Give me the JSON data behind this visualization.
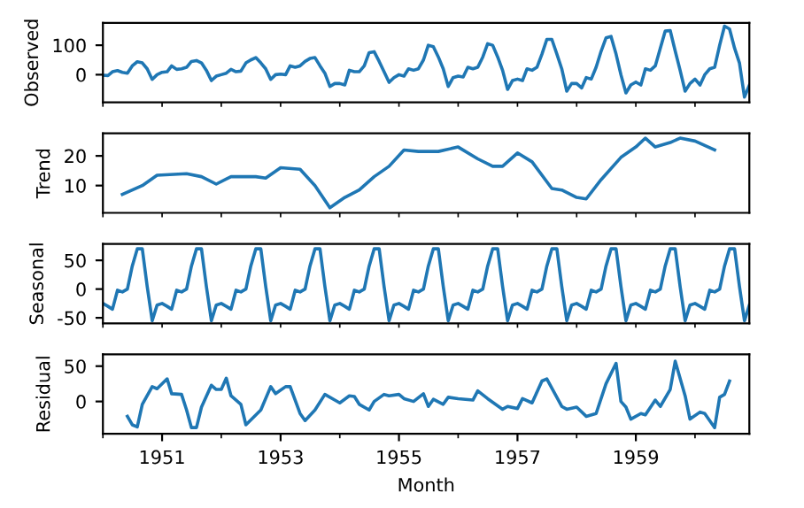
{
  "chart_data": [
    {
      "type": "line",
      "ylabel": "Observed",
      "ylim": [
        -94,
        176
      ],
      "yticks": [
        0,
        100
      ],
      "xlim": [
        "1950-01",
        "1960-12"
      ],
      "xticks": [
        {
          "value": "1950",
          "label": null
        },
        {
          "value": "1951",
          "label": null
        },
        {
          "value": "1952",
          "label": null
        },
        {
          "value": "1953",
          "label": null
        },
        {
          "value": "1954",
          "label": null
        },
        {
          "value": "1955",
          "label": null
        },
        {
          "value": "1956",
          "label": null
        },
        {
          "value": "1957",
          "label": null
        },
        {
          "value": "1958",
          "label": null
        },
        {
          "value": "1959",
          "label": null
        },
        {
          "value": "1960",
          "label": null
        }
      ],
      "tick_labels": "y",
      "grid": false,
      "x": [
        "1950-01",
        "1950-02",
        "1950-03",
        "1950-04",
        "1950-05",
        "1950-06",
        "1950-07",
        "1950-08",
        "1950-09",
        "1950-10",
        "1950-11",
        "1950-12",
        "1951-01",
        "1951-02",
        "1951-03",
        "1951-04",
        "1951-05",
        "1951-06",
        "1951-07",
        "1951-08",
        "1951-09",
        "1951-10",
        "1951-11",
        "1951-12",
        "1952-01",
        "1952-02",
        "1952-03",
        "1952-04",
        "1952-05",
        "1952-06",
        "1952-07",
        "1952-08",
        "1952-09",
        "1952-10",
        "1952-11",
        "1952-12",
        "1953-01",
        "1953-02",
        "1953-03",
        "1953-04",
        "1953-05",
        "1953-06",
        "1953-07",
        "1953-08",
        "1953-09",
        "1953-10",
        "1953-11",
        "1953-12",
        "1954-01",
        "1954-02",
        "1954-03",
        "1954-04",
        "1954-05",
        "1954-06",
        "1954-07",
        "1954-08",
        "1954-09",
        "1954-10",
        "1954-11",
        "1954-12",
        "1955-01",
        "1955-02",
        "1955-03",
        "1955-04",
        "1955-05",
        "1955-06",
        "1955-07",
        "1955-08",
        "1955-09",
        "1955-10",
        "1955-11",
        "1955-12",
        "1956-01",
        "1956-02",
        "1956-03",
        "1956-04",
        "1956-05",
        "1956-06",
        "1956-07",
        "1956-08",
        "1956-09",
        "1956-10",
        "1956-11",
        "1956-12",
        "1957-01",
        "1957-02",
        "1957-03",
        "1957-04",
        "1957-05",
        "1957-06",
        "1957-07",
        "1957-08",
        "1957-09",
        "1957-10",
        "1957-11",
        "1957-12",
        "1958-01",
        "1958-02",
        "1958-03",
        "1958-04",
        "1958-05",
        "1958-06",
        "1958-07",
        "1958-08",
        "1958-09",
        "1958-10",
        "1958-11",
        "1958-12",
        "1959-01",
        "1959-02",
        "1959-03",
        "1959-04",
        "1959-05",
        "1959-06",
        "1959-07",
        "1959-08",
        "1959-09",
        "1959-10",
        "1959-11",
        "1959-12",
        "1960-01",
        "1960-02",
        "1960-03",
        "1960-04",
        "1960-05",
        "1960-06",
        "1960-07",
        "1960-08",
        "1960-09",
        "1960-10",
        "1960-11",
        "1960-12"
      ],
      "series": [
        {
          "color": "#1f77b4",
          "values": [
            -2,
            -3,
            10,
            14,
            8,
            5,
            30,
            44,
            40,
            20,
            -16,
            0,
            8,
            10,
            30,
            18,
            20,
            25,
            45,
            48,
            40,
            15,
            -20,
            -5,
            0,
            5,
            18,
            10,
            12,
            40,
            50,
            58,
            40,
            20,
            -16,
            0,
            2,
            0,
            30,
            25,
            30,
            45,
            55,
            58,
            30,
            5,
            -40,
            -30,
            -30,
            -35,
            15,
            10,
            10,
            30,
            75,
            78,
            45,
            10,
            -26,
            -10,
            0,
            -5,
            20,
            15,
            20,
            50,
            100,
            95,
            60,
            20,
            -40,
            -10,
            -5,
            -8,
            25,
            20,
            25,
            60,
            105,
            100,
            60,
            15,
            -50,
            -20,
            -15,
            -20,
            20,
            15,
            25,
            70,
            120,
            120,
            70,
            20,
            -56,
            -30,
            -30,
            -45,
            -10,
            -15,
            25,
            80,
            125,
            130,
            70,
            0,
            -62,
            -35,
            -25,
            -35,
            20,
            15,
            30,
            90,
            148,
            150,
            80,
            15,
            -56,
            -30,
            -15,
            -35,
            0,
            20,
            25,
            100,
            165,
            155,
            90,
            40,
            -76,
            -36
          ]
        }
      ]
    },
    {
      "type": "line",
      "ylabel": "Trend",
      "ylim": [
        0.8,
        27.6
      ],
      "yticks": [
        10,
        20
      ],
      "xlim": [
        "1950-01",
        "1960-12"
      ],
      "xticks": [
        {
          "value": "1950",
          "label": null
        },
        {
          "value": "1951",
          "label": null
        },
        {
          "value": "1952",
          "label": null
        },
        {
          "value": "1953",
          "label": null
        },
        {
          "value": "1954",
          "label": null
        },
        {
          "value": "1955",
          "label": null
        },
        {
          "value": "1956",
          "label": null
        },
        {
          "value": "1957",
          "label": null
        },
        {
          "value": "1958",
          "label": null
        },
        {
          "value": "1959",
          "label": null
        },
        {
          "value": "1960",
          "label": null
        }
      ],
      "tick_labels": "y",
      "grid": false,
      "series": [
        {
          "color": "#1f77b4",
          "x": [
            "1950-05",
            "1950-09",
            "1950-12",
            "1951-06",
            "1951-09",
            "1951-12",
            "1952-03",
            "1952-08",
            "1952-10",
            "1953-01",
            "1953-05",
            "1953-08",
            "1953-11",
            "1954-02",
            "1954-05",
            "1954-08",
            "1954-11",
            "1955-02",
            "1955-05",
            "1955-09",
            "1956-01",
            "1956-05",
            "1956-08",
            "1956-10",
            "1957-01",
            "1957-04",
            "1957-08",
            "1957-10",
            "1958-01",
            "1958-03",
            "1958-06",
            "1958-10",
            "1959-01",
            "1959-03",
            "1959-05",
            "1959-08",
            "1959-10",
            "1960-01",
            "1960-05"
          ],
          "values": [
            7,
            10,
            13.5,
            14,
            13,
            10.5,
            13,
            13,
            12.5,
            16,
            15.5,
            10,
            2.5,
            6,
            8.5,
            13,
            16.5,
            22,
            21.5,
            21.5,
            23,
            19,
            16.5,
            16.5,
            21,
            18,
            9,
            8.5,
            6,
            5.5,
            12,
            19.5,
            23,
            26,
            23,
            24.5,
            26,
            25,
            22
          ]
        }
      ]
    },
    {
      "type": "line",
      "ylabel": "Seasonal",
      "ylim": [
        -59.6,
        78.7
      ],
      "yticks": [
        -50,
        0,
        50
      ],
      "xlim": [
        "1950-01",
        "1960-12"
      ],
      "xticks": [
        {
          "value": "1950",
          "label": null
        },
        {
          "value": "1951",
          "label": null
        },
        {
          "value": "1952",
          "label": null
        },
        {
          "value": "1953",
          "label": null
        },
        {
          "value": "1954",
          "label": null
        },
        {
          "value": "1955",
          "label": null
        },
        {
          "value": "1956",
          "label": null
        },
        {
          "value": "1957",
          "label": null
        },
        {
          "value": "1958",
          "label": null
        },
        {
          "value": "1959",
          "label": null
        },
        {
          "value": "1960",
          "label": null
        }
      ],
      "tick_labels": "y",
      "grid": false,
      "x": [
        "1950-01",
        "1950-02",
        "1950-03",
        "1950-04",
        "1950-05",
        "1950-06",
        "1950-07",
        "1950-08",
        "1950-09",
        "1950-10",
        "1950-11",
        "1950-12",
        "1951-01",
        "1951-02",
        "1951-03",
        "1951-04",
        "1951-05",
        "1951-06",
        "1951-07",
        "1951-08",
        "1951-09",
        "1951-10",
        "1951-11",
        "1951-12",
        "1952-01",
        "1952-02",
        "1952-03",
        "1952-04",
        "1952-05",
        "1952-06",
        "1952-07",
        "1952-08",
        "1952-09",
        "1952-10",
        "1952-11",
        "1952-12",
        "1953-01",
        "1953-02",
        "1953-03",
        "1953-04",
        "1953-05",
        "1953-06",
        "1953-07",
        "1953-08",
        "1953-09",
        "1953-10",
        "1953-11",
        "1953-12",
        "1954-01",
        "1954-02",
        "1954-03",
        "1954-04",
        "1954-05",
        "1954-06",
        "1954-07",
        "1954-08",
        "1954-09",
        "1954-10",
        "1954-11",
        "1954-12",
        "1955-01",
        "1955-02",
        "1955-03",
        "1955-04",
        "1955-05",
        "1955-06",
        "1955-07",
        "1955-08",
        "1955-09",
        "1955-10",
        "1955-11",
        "1955-12",
        "1956-01",
        "1956-02",
        "1956-03",
        "1956-04",
        "1956-05",
        "1956-06",
        "1956-07",
        "1956-08",
        "1956-09",
        "1956-10",
        "1956-11",
        "1956-12",
        "1957-01",
        "1957-02",
        "1957-03",
        "1957-04",
        "1957-05",
        "1957-06",
        "1957-07",
        "1957-08",
        "1957-09",
        "1957-10",
        "1957-11",
        "1957-12",
        "1958-01",
        "1958-02",
        "1958-03",
        "1958-04",
        "1958-05",
        "1958-06",
        "1958-07",
        "1958-08",
        "1958-09",
        "1958-10",
        "1958-11",
        "1958-12",
        "1959-01",
        "1959-02",
        "1959-03",
        "1959-04",
        "1959-05",
        "1959-06",
        "1959-07",
        "1959-08",
        "1959-09",
        "1959-10",
        "1959-11",
        "1959-12",
        "1960-01",
        "1960-02",
        "1960-03",
        "1960-04",
        "1960-05",
        "1960-06",
        "1960-07",
        "1960-08",
        "1960-09",
        "1960-10",
        "1960-11",
        "1960-12"
      ],
      "series": [
        {
          "color": "#1f77b4",
          "values": [
            -25,
            -30,
            -35,
            -2,
            -5,
            0,
            40,
            70,
            70,
            5,
            -55,
            -28,
            -25,
            -30,
            -35,
            -2,
            -5,
            0,
            40,
            70,
            70,
            5,
            -55,
            -28,
            -25,
            -30,
            -35,
            -2,
            -5,
            0,
            40,
            70,
            70,
            5,
            -55,
            -28,
            -25,
            -30,
            -35,
            -2,
            -5,
            0,
            40,
            70,
            70,
            5,
            -55,
            -28,
            -25,
            -30,
            -35,
            -2,
            -5,
            0,
            40,
            70,
            70,
            5,
            -55,
            -28,
            -25,
            -30,
            -35,
            -2,
            -5,
            0,
            40,
            70,
            70,
            5,
            -55,
            -28,
            -25,
            -30,
            -35,
            -2,
            -5,
            0,
            40,
            70,
            70,
            5,
            -55,
            -28,
            -25,
            -30,
            -35,
            -2,
            -5,
            0,
            40,
            70,
            70,
            5,
            -55,
            -28,
            -25,
            -30,
            -35,
            -2,
            -5,
            0,
            40,
            70,
            70,
            5,
            -55,
            -28,
            -25,
            -30,
            -35,
            -2,
            -5,
            0,
            40,
            70,
            70,
            5,
            -55,
            -28,
            -25,
            -30,
            -35,
            -2,
            -5,
            0,
            40,
            70,
            70,
            5,
            -55,
            -28
          ]
        }
      ]
    },
    {
      "type": "line",
      "ylabel": "Residual",
      "xlabel": "Month",
      "ylim": [
        -45.8,
        66.7
      ],
      "yticks": [
        0,
        50
      ],
      "xlim": [
        "1950-01",
        "1960-12"
      ],
      "xticks": [
        {
          "value": "1950",
          "label": null
        },
        "1951",
        {
          "value": "1952",
          "label": null
        },
        "1953",
        {
          "value": "1954",
          "label": null
        },
        "1955",
        {
          "value": "1956",
          "label": null
        },
        "1957",
        {
          "value": "1958",
          "label": null
        },
        "1959",
        {
          "value": "1960",
          "label": null
        }
      ],
      "grid": false,
      "series": [
        {
          "color": "#1f77b4",
          "x": [
            "1950-06",
            "1950-07",
            "1950-08",
            "1950-09",
            "1950-11",
            "1950-12",
            "1951-02",
            "1951-03",
            "1951-05",
            "1951-06",
            "1951-07",
            "1951-08",
            "1951-09",
            "1951-11",
            "1951-12",
            "1952-01",
            "1952-02",
            "1952-03",
            "1952-05",
            "1952-06",
            "1952-09",
            "1952-11",
            "1952-12",
            "1953-02",
            "1953-03",
            "1953-05",
            "1953-06",
            "1953-08",
            "1953-10",
            "1953-12",
            "1954-01",
            "1954-03",
            "1954-04",
            "1954-05",
            "1954-07",
            "1954-08",
            "1954-10",
            "1954-11",
            "1955-01",
            "1955-02",
            "1955-04",
            "1955-06",
            "1955-07",
            "1955-08",
            "1955-10",
            "1955-11",
            "1956-01",
            "1956-04",
            "1956-05",
            "1956-07",
            "1956-10",
            "1956-11",
            "1957-01",
            "1957-02",
            "1957-04",
            "1957-06",
            "1957-07",
            "1957-10",
            "1957-11",
            "1958-01",
            "1958-03",
            "1958-05",
            "1958-07",
            "1958-09",
            "1958-10",
            "1958-11",
            "1958-12",
            "1959-02",
            "1959-03",
            "1959-05",
            "1959-06",
            "1959-08",
            "1959-09",
            "1959-11",
            "1959-12",
            "1960-02",
            "1960-03",
            "1960-05",
            "1960-06",
            "1960-07",
            "1960-08"
          ],
          "values": [
            -21,
            -33,
            -36,
            -4,
            21,
            18,
            32,
            11,
            10,
            -12,
            -37,
            -37,
            -8,
            23,
            17,
            17,
            33,
            8,
            -4,
            -33,
            -12,
            21,
            11,
            21,
            21,
            -17,
            -27,
            -12,
            10,
            2,
            -2,
            8,
            7,
            -4,
            -12,
            0,
            10,
            8,
            10,
            4,
            0,
            11,
            -7,
            3,
            -4,
            6,
            4,
            2,
            15,
            4,
            -11,
            -7,
            -10,
            4,
            -2,
            29,
            32,
            -7,
            -11,
            -8,
            -21,
            -17,
            25,
            54,
            0,
            -8,
            -25,
            -17,
            -19,
            2,
            -7,
            17,
            57,
            8,
            -25,
            -15,
            -17,
            -37,
            6,
            10,
            29
          ]
        }
      ]
    }
  ]
}
